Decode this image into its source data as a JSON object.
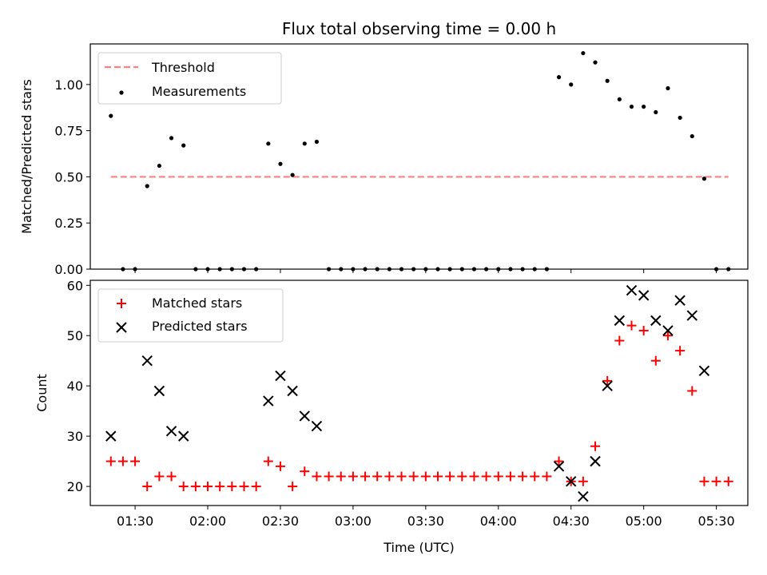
{
  "chart_data": [
    {
      "type": "scatter",
      "title": "Flux total observing time = 0.00 h",
      "xlabel": "",
      "ylabel": "Matched/Predicted stars",
      "ylim": [
        0,
        1.22
      ],
      "yticks": [
        "0.00",
        "0.25",
        "0.50",
        "0.75",
        "1.00"
      ],
      "grid": false,
      "legend_position": "top-left",
      "threshold": {
        "name": "Threshold",
        "value": 0.5,
        "x_start": "01:20",
        "x_end": "05:35",
        "color": "#ff7f7f"
      },
      "series": [
        {
          "name": "Measurements",
          "color": "#000000",
          "x": [
            "01:20",
            "01:25",
            "01:30",
            "01:35",
            "01:40",
            "01:45",
            "01:50",
            "01:55",
            "02:00",
            "02:05",
            "02:10",
            "02:15",
            "02:20",
            "02:25",
            "02:30",
            "02:35",
            "02:40",
            "02:45",
            "02:50",
            "02:55",
            "03:00",
            "03:05",
            "03:10",
            "03:15",
            "03:20",
            "03:25",
            "03:30",
            "03:35",
            "03:40",
            "03:45",
            "03:50",
            "03:55",
            "04:00",
            "04:05",
            "04:10",
            "04:15",
            "04:20",
            "04:25",
            "04:30",
            "04:35",
            "04:40",
            "04:45",
            "04:50",
            "04:55",
            "05:00",
            "05:05",
            "05:10",
            "05:15",
            "05:20",
            "05:25",
            "05:30",
            "05:35"
          ],
          "y": [
            0.83,
            0,
            0,
            0.45,
            0.56,
            0.71,
            0.67,
            0,
            0,
            0,
            0,
            0,
            0,
            0.68,
            0.57,
            0.51,
            0.68,
            0.69,
            0,
            0,
            0,
            0,
            0,
            0,
            0,
            0,
            0,
            0,
            0,
            0,
            0,
            0,
            0,
            0,
            0,
            0,
            0,
            1.04,
            1.0,
            1.17,
            1.12,
            1.02,
            0.92,
            0.88,
            0.88,
            0.85,
            0.98,
            0.82,
            0.72,
            0.49,
            0,
            0
          ]
        }
      ]
    },
    {
      "type": "scatter",
      "title": "",
      "xlabel": "Time (UTC)",
      "ylabel": "Count",
      "ylim": [
        16.2,
        61
      ],
      "yticks": [
        "20",
        "30",
        "40",
        "50",
        "60"
      ],
      "xticks": [
        "01:30",
        "02:00",
        "02:30",
        "03:00",
        "03:30",
        "04:00",
        "04:30",
        "05:00",
        "05:30"
      ],
      "grid": false,
      "legend_position": "top-left",
      "series": [
        {
          "name": "Matched stars",
          "marker": "plus",
          "color": "#ff0000",
          "x": [
            "01:20",
            "01:25",
            "01:30",
            "01:35",
            "01:40",
            "01:45",
            "01:50",
            "01:55",
            "02:00",
            "02:05",
            "02:10",
            "02:15",
            "02:20",
            "02:25",
            "02:30",
            "02:35",
            "02:40",
            "02:45",
            "02:50",
            "02:55",
            "03:00",
            "03:05",
            "03:10",
            "03:15",
            "03:20",
            "03:25",
            "03:30",
            "03:35",
            "03:40",
            "03:45",
            "03:50",
            "03:55",
            "04:00",
            "04:05",
            "04:10",
            "04:15",
            "04:20",
            "04:25",
            "04:30",
            "04:35",
            "04:40",
            "04:45",
            "04:50",
            "04:55",
            "05:00",
            "05:05",
            "05:10",
            "05:15",
            "05:20",
            "05:25",
            "05:30",
            "05:35"
          ],
          "y": [
            25,
            25,
            25,
            20,
            22,
            22,
            20,
            20,
            20,
            20,
            20,
            20,
            20,
            25,
            24,
            20,
            23,
            22,
            22,
            22,
            22,
            22,
            22,
            22,
            22,
            22,
            22,
            22,
            22,
            22,
            22,
            22,
            22,
            22,
            22,
            22,
            22,
            25,
            21,
            21,
            28,
            41,
            49,
            52,
            51,
            45,
            50,
            47,
            39,
            21,
            21,
            21
          ]
        },
        {
          "name": "Predicted stars",
          "marker": "x",
          "color": "#000000",
          "x": [
            "01:20",
            "01:35",
            "01:40",
            "01:45",
            "01:50",
            "02:25",
            "02:30",
            "02:35",
            "02:40",
            "02:45",
            "04:25",
            "04:30",
            "04:35",
            "04:40",
            "04:45",
            "04:50",
            "04:55",
            "05:00",
            "05:05",
            "05:10",
            "05:15",
            "05:20",
            "05:25"
          ],
          "y": [
            30,
            45,
            39,
            31,
            30,
            37,
            42,
            39,
            34,
            32,
            24,
            21,
            18,
            25,
            40,
            53,
            59,
            58,
            53,
            51,
            57,
            54,
            43
          ]
        }
      ]
    }
  ]
}
